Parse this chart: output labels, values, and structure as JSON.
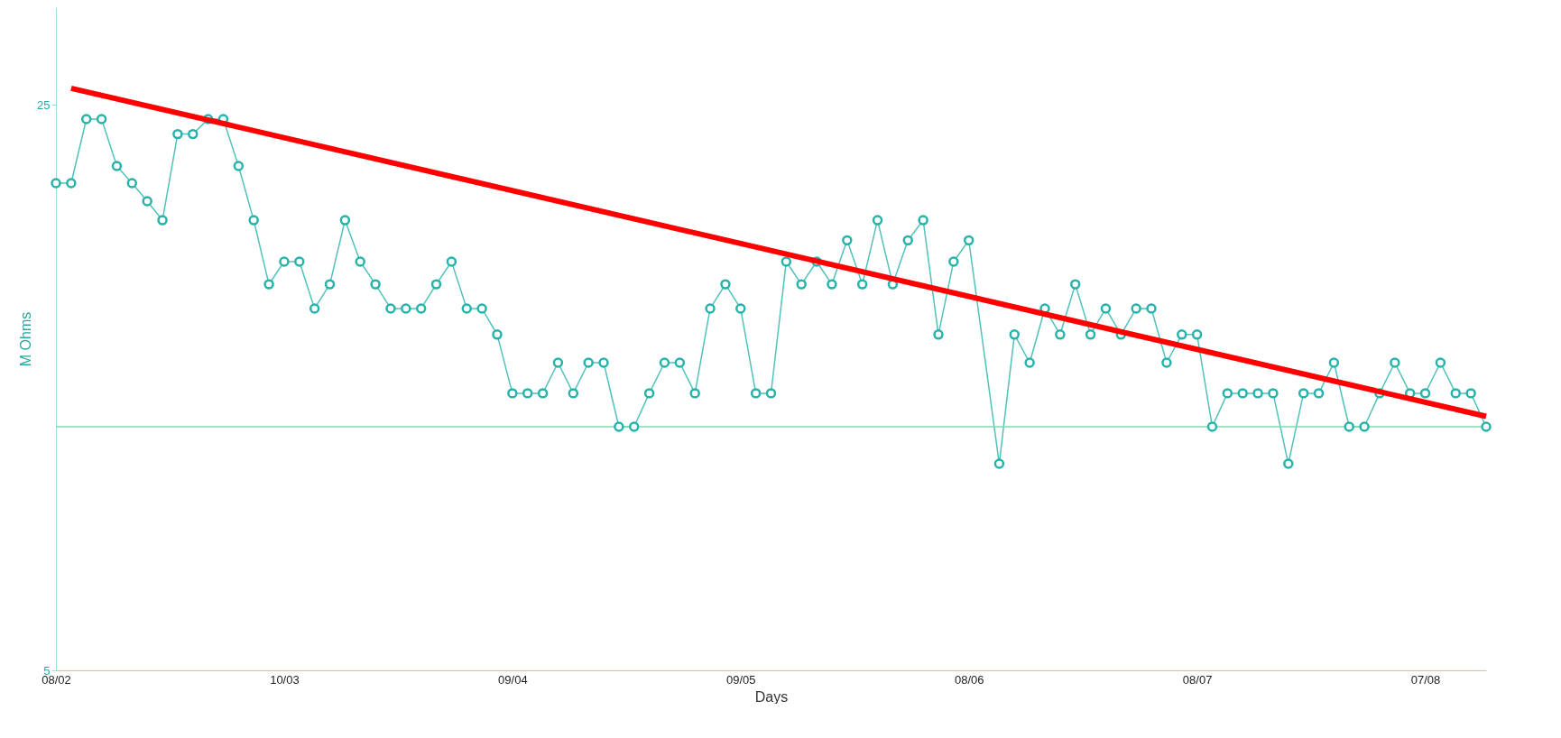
{
  "chart_data": {
    "type": "line",
    "xlabel": "Days",
    "ylabel": "M Ohms",
    "categories": [
      "08/02",
      null,
      null,
      null,
      null,
      null,
      null,
      null,
      null,
      null,
      null,
      null,
      null,
      null,
      null,
      "10/03",
      null,
      null,
      null,
      null,
      null,
      null,
      null,
      null,
      null,
      null,
      null,
      null,
      null,
      null,
      "09/04",
      null,
      null,
      null,
      null,
      null,
      null,
      null,
      null,
      null,
      null,
      null,
      null,
      null,
      null,
      "09/05",
      null,
      null,
      null,
      null,
      null,
      null,
      null,
      null,
      null,
      null,
      null,
      null,
      null,
      null,
      "08/06",
      null,
      null,
      null,
      null,
      null,
      null,
      null,
      null,
      null,
      null,
      null,
      null,
      null,
      null,
      "08/07",
      null,
      null,
      null,
      null,
      null,
      null,
      null,
      null,
      null,
      null,
      null,
      null,
      null,
      null,
      "07/08",
      null,
      null,
      null,
      null
    ],
    "series": [
      {
        "color": "#25b3aa",
        "marker": "circle",
        "line_style": "solid",
        "values": [
          20,
          20,
          24,
          24,
          21,
          20,
          19,
          18,
          23,
          23,
          24,
          24,
          21,
          18,
          15,
          16,
          16,
          14,
          15,
          18,
          16,
          15,
          14,
          14,
          14,
          15,
          16,
          14,
          14,
          13,
          11,
          11,
          11,
          12,
          11,
          12,
          12,
          10,
          10,
          11,
          12,
          12,
          11,
          14,
          15,
          14,
          11,
          11,
          16,
          15,
          16,
          15,
          17,
          15,
          18,
          15,
          17,
          18,
          13,
          16,
          17,
          null,
          9,
          13,
          12,
          14,
          13,
          15,
          13,
          14,
          13,
          14,
          14,
          12,
          13,
          13,
          10,
          11,
          11,
          11,
          11,
          9,
          11,
          11,
          12,
          10,
          10,
          11,
          12,
          11,
          11,
          12,
          11,
          11,
          10
        ]
      },
      {
        "type": "line",
        "color": "#ff0000",
        "marker": "none",
        "line_style": "solid",
        "values": [
          null,
          26.2,
          null,
          null,
          null,
          null,
          null,
          null,
          null,
          null,
          null,
          null,
          null,
          null,
          null,
          null,
          null,
          null,
          null,
          null,
          null,
          null,
          null,
          null,
          null,
          null,
          null,
          null,
          null,
          null,
          null,
          null,
          null,
          null,
          null,
          null,
          null,
          null,
          null,
          null,
          null,
          null,
          null,
          null,
          null,
          null,
          null,
          null,
          null,
          null,
          null,
          null,
          null,
          null,
          null,
          null,
          null,
          null,
          null,
          null,
          null,
          null,
          null,
          null,
          null,
          null,
          null,
          null,
          null,
          null,
          null,
          null,
          null,
          null,
          null,
          null,
          null,
          null,
          null,
          null,
          null,
          null,
          null,
          null,
          null,
          null,
          null,
          null,
          null,
          null,
          null,
          null,
          null,
          null,
          10.3
        ]
      }
    ],
    "ylim": [
      5,
      33
    ],
    "yticks": [
      5,
      25
    ],
    "log": true,
    "grid": false,
    "legend": false,
    "ref_lines": [
      {
        "axis": "y",
        "value": 10,
        "color": "#7fdcaa"
      }
    ]
  }
}
